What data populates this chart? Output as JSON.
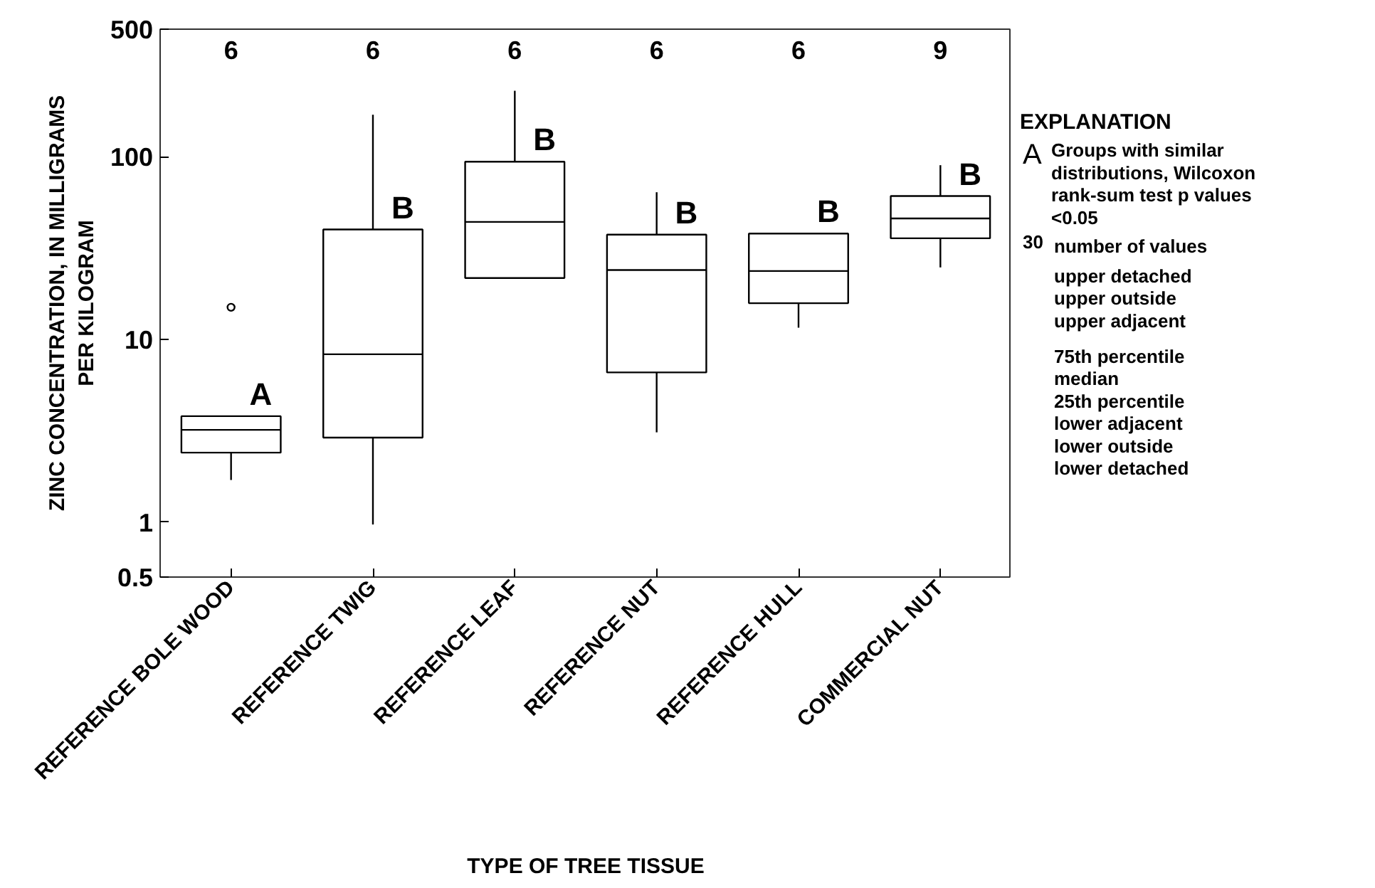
{
  "chart_data": {
    "type": "box",
    "xlabel": "TYPE OF TREE TISSUE",
    "ylabel": "ZINC CONCENTRATION, IN MILLIGRAMS PER KILOGRAM",
    "log": "y",
    "grid": false,
    "color": "#000000",
    "categories": [
      "REFERENCE BOLE WOOD",
      "REFERENCE TWIG",
      "REFERENCE LEAF",
      "REFERENCE NUT",
      "REFERENCE HULL",
      "COMMERCIAL NUT"
    ],
    "ylim": [
      0.5,
      500
    ],
    "yticks": [
      0.5,
      1,
      10,
      100,
      500
    ],
    "boxes": [
      {
        "low": 1.7,
        "q1": 2.4,
        "median": 3.2,
        "q3": 3.8,
        "high": 3.8,
        "outliers": [
          15
        ]
      },
      {
        "low": 0.97,
        "q1": 2.9,
        "median": 8.3,
        "q3": 40,
        "high": 170
      },
      {
        "low": 21.7,
        "q1": 21.7,
        "median": 44,
        "q3": 94,
        "high": 230
      },
      {
        "low": 3.1,
        "q1": 6.6,
        "median": 24,
        "q3": 37.5,
        "high": 64
      },
      {
        "low": 11.6,
        "q1": 15.8,
        "median": 23.7,
        "q3": 38,
        "high": 38
      },
      {
        "low": 24.8,
        "q1": 35.8,
        "median": 46,
        "q3": 61,
        "high": 90
      }
    ],
    "annotations": [
      "6",
      "6",
      "6",
      "6",
      "6",
      "9",
      {
        "text": "A",
        "x": "REFERENCE BOLE WOOD",
        "y": 3.8
      },
      {
        "text": "B",
        "x": "REFERENCE TWIG",
        "y": 40
      },
      {
        "text": "B",
        "x": "REFERENCE LEAF",
        "y": 94
      },
      {
        "text": "B",
        "x": "REFERENCE NUT",
        "y": 37.5
      },
      {
        "text": "B",
        "x": "REFERENCE HULL",
        "y": 38
      },
      {
        "text": "B",
        "x": "COMMERCIAL NUT",
        "y": 61
      },
      "EXPLANATION",
      "A",
      "Groups with similar distributions, Wilcoxon rank-sum test p values <0.05",
      "30",
      "number of values",
      "upper detached",
      "upper outside",
      "upper adjacent",
      "75th percentile",
      "median",
      "25th percentile",
      "lower adjacent",
      "lower outside",
      "lower detached"
    ]
  }
}
